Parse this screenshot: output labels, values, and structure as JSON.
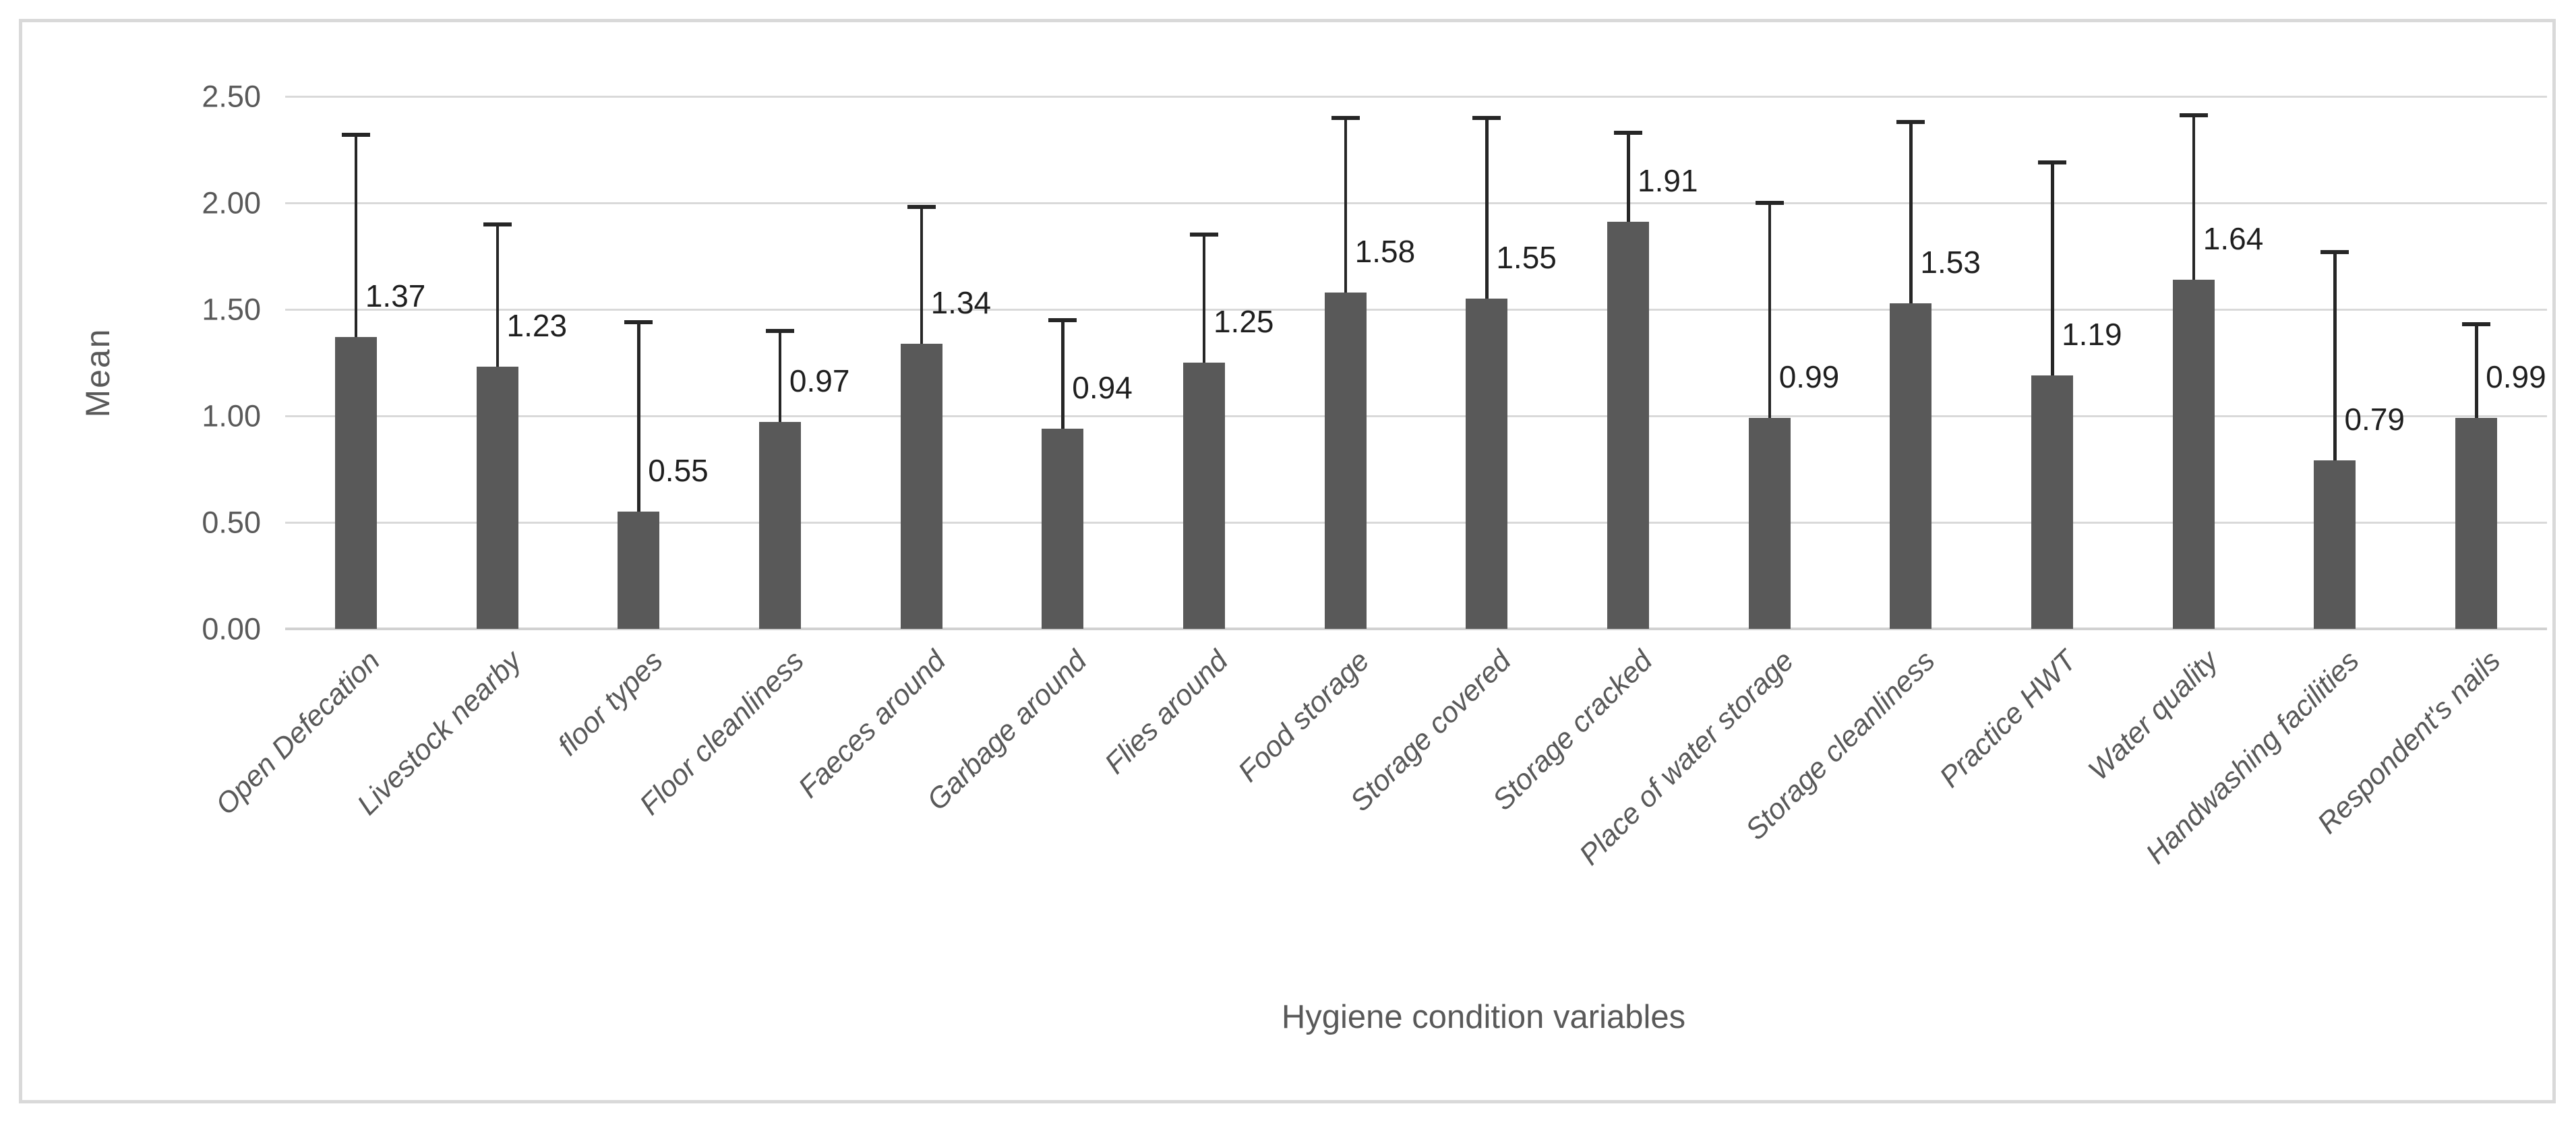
{
  "chart_data": {
    "type": "bar",
    "title": "",
    "xlabel": "Hygiene condition variables",
    "ylabel": "Mean",
    "ylim": [
      0,
      2.5
    ],
    "ytick_step": 0.5,
    "ytick_labels": [
      "0.00",
      "0.50",
      "1.00",
      "1.50",
      "2.00",
      "2.50"
    ],
    "grid": true,
    "legend": false,
    "error_bars": "plus-direction only, upper whisker with cap",
    "categories": [
      "Open Defecation",
      "Livestock nearby",
      "floor types",
      "Floor cleanliness",
      "Faeces around",
      "Garbage around",
      "Flies around",
      "Food storage",
      "Storage covered",
      "Storage cracked",
      "Place of water storage",
      "Storage cleanliness",
      "Practice HWT",
      "Water quality",
      "Handwashing facilities",
      "Respondent's nails"
    ],
    "values": [
      1.37,
      1.23,
      0.55,
      0.97,
      1.34,
      0.94,
      1.25,
      1.58,
      1.55,
      1.91,
      0.99,
      1.53,
      1.19,
      1.64,
      0.79,
      0.99
    ],
    "value_labels": [
      "1.37",
      "1.23",
      "0.55",
      "0.97",
      "1.34",
      "0.94",
      "1.25",
      "1.58",
      "1.55",
      "1.91",
      "0.99",
      "1.53",
      "1.19",
      "1.64",
      "0.79",
      "0.99"
    ],
    "error_bar_tops": [
      2.32,
      1.9,
      1.44,
      1.4,
      1.98,
      1.45,
      1.85,
      2.4,
      2.4,
      2.33,
      2.0,
      2.38,
      2.19,
      2.41,
      1.77,
      1.43
    ]
  },
  "colors": {
    "bar_fill": "#595959",
    "error_bar": "#262626",
    "gridline": "#d9d9d9",
    "chart_border": "#d9d9d9",
    "data_label": "#1f1f1f",
    "axis_label": "#595959",
    "background": "#ffffff"
  }
}
